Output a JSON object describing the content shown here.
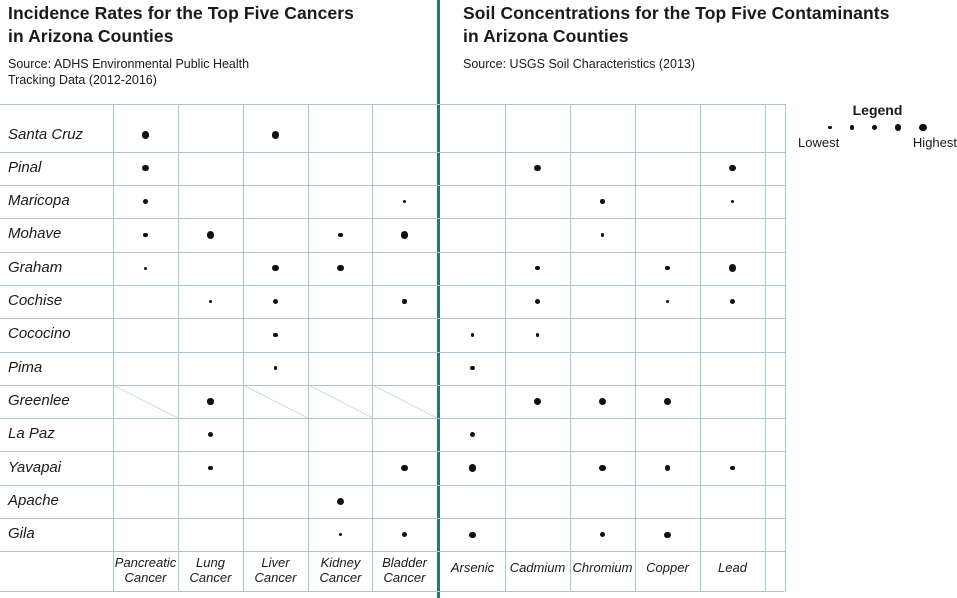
{
  "left_panel": {
    "title_line1": "Incidence Rates for the Top Five Cancers",
    "title_line2": "in Arizona Counties",
    "source_line1": "Source: ADHS Environmental Public Health",
    "source_line2": "Tracking Data (2012-2016)"
  },
  "right_panel": {
    "title_line1": "Soil Concentrations for the Top Five Contaminants",
    "title_line2": "in Arizona Counties",
    "source_line1": "Source: USGS Soil Characteristics (2013)"
  },
  "legend": {
    "title": "Legend",
    "low_label": "Lowest",
    "high_label": "Highest",
    "size_ranks": [
      1,
      2,
      3,
      4,
      5
    ]
  },
  "colors": {
    "grid_line": "#aac6d2",
    "divider": "#2f7286",
    "dot": "#111111",
    "text": "#1a1a1a"
  },
  "chart_data": {
    "type": "heatmap",
    "subtype": "dot-size-matrix",
    "encoding": "dot size encodes relative rank 1 (lowest) to 5 (highest); 0 = no dot; -1 = slashed cell (data not available)",
    "left_group_label": "Cancers",
    "right_group_label": "Contaminants",
    "rows": [
      "Santa Cruz",
      "Pinal",
      "Maricopa",
      "Mohave",
      "Graham",
      "Cochise",
      "Cococino",
      "Pima",
      "Greenlee",
      "La Paz",
      "Yavapai",
      "Apache",
      "Gila"
    ],
    "columns": [
      "Pancreatic Cancer",
      "Lung Cancer",
      "Liver Cancer",
      "Kidney Cancer",
      "Bladder Cancer",
      "Arsenic",
      "Cadmium",
      "Chromium",
      "Copper",
      "Lead"
    ],
    "values": [
      [
        5,
        0,
        5,
        0,
        0,
        0,
        0,
        0,
        0,
        0
      ],
      [
        4,
        0,
        0,
        0,
        0,
        0,
        4,
        0,
        0,
        4
      ],
      [
        3,
        0,
        0,
        0,
        1,
        0,
        0,
        2,
        0,
        1
      ],
      [
        2,
        5,
        0,
        2,
        5,
        0,
        0,
        1,
        0,
        0
      ],
      [
        1,
        0,
        4,
        4,
        0,
        0,
        2,
        0,
        2,
        5
      ],
      [
        0,
        1,
        3,
        0,
        2,
        0,
        3,
        0,
        1,
        3
      ],
      [
        0,
        0,
        2,
        0,
        0,
        1,
        1,
        0,
        0,
        0
      ],
      [
        0,
        0,
        1,
        0,
        0,
        2,
        0,
        0,
        0,
        0
      ],
      [
        -1,
        4,
        -1,
        -1,
        -1,
        0,
        5,
        5,
        5,
        0
      ],
      [
        0,
        3,
        0,
        0,
        0,
        3,
        0,
        0,
        0,
        0
      ],
      [
        0,
        2,
        0,
        0,
        4,
        5,
        0,
        4,
        3,
        2
      ],
      [
        0,
        0,
        0,
        5,
        0,
        0,
        0,
        0,
        0,
        0
      ],
      [
        0,
        0,
        0,
        1,
        3,
        4,
        0,
        3,
        4,
        0
      ]
    ]
  }
}
